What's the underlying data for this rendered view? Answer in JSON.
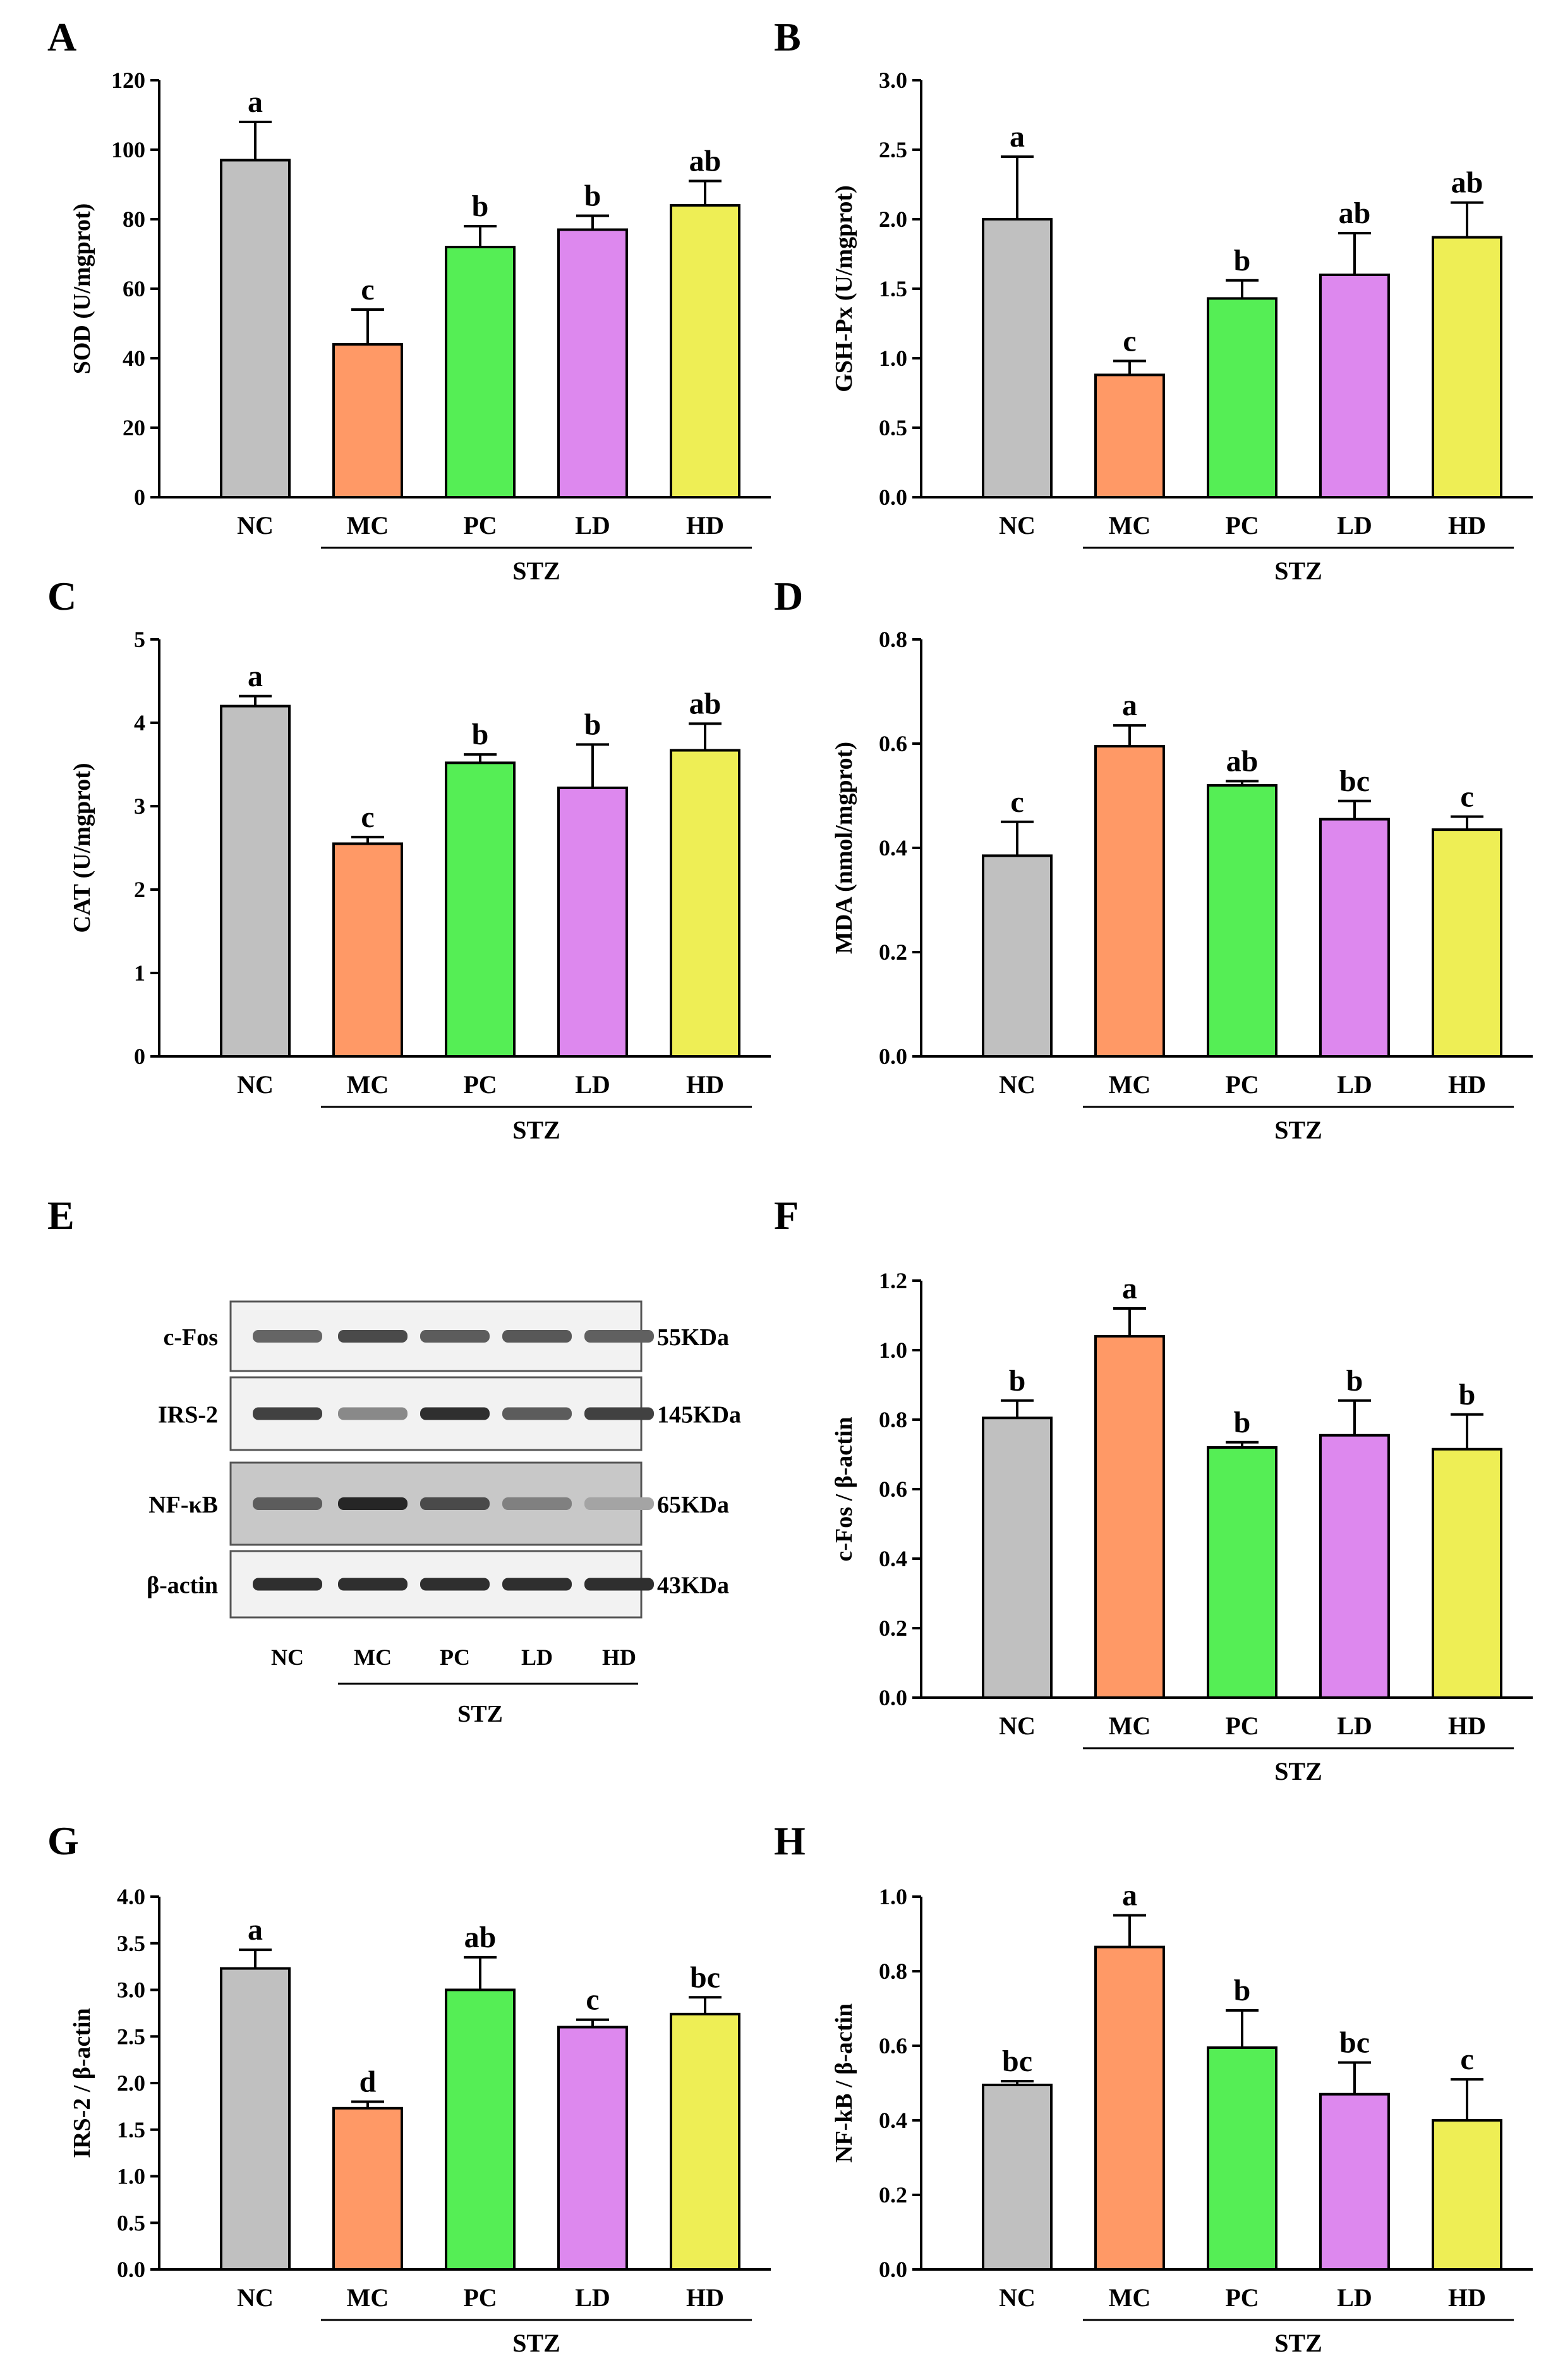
{
  "colors": {
    "NC": "#c0c0c0",
    "MC": "#ff9966",
    "PC": "#55ee55",
    "LD": "#dd88ee",
    "HD": "#eeee55",
    "axis": "#000000"
  },
  "chart_data": [
    {
      "panel": "A",
      "type": "bar",
      "ylabel": "SOD (U/mgprot)",
      "categories": [
        "NC",
        "MC",
        "PC",
        "LD",
        "HD"
      ],
      "values": [
        97,
        44,
        72,
        77,
        84
      ],
      "errors": [
        11,
        10,
        6,
        4,
        7
      ],
      "letters": [
        "a",
        "c",
        "b",
        "b",
        "ab"
      ],
      "ylim": [
        0,
        120
      ],
      "yticks": [
        "0",
        "20",
        "40",
        "60",
        "80",
        "100",
        "120"
      ],
      "group_label": "STZ"
    },
    {
      "panel": "B",
      "type": "bar",
      "ylabel": "GSH-Px (U/mgprot)",
      "categories": [
        "NC",
        "MC",
        "PC",
        "LD",
        "HD"
      ],
      "values": [
        2.0,
        0.88,
        1.43,
        1.6,
        1.87
      ],
      "errors": [
        0.45,
        0.1,
        0.13,
        0.3,
        0.25
      ],
      "letters": [
        "a",
        "c",
        "b",
        "ab",
        "ab"
      ],
      "ylim": [
        0,
        3
      ],
      "yticks": [
        "0.0",
        "0.5",
        "1.0",
        "1.5",
        "2.0",
        "2.5",
        "3.0"
      ],
      "group_label": "STZ"
    },
    {
      "panel": "C",
      "type": "bar",
      "ylabel": "CAT (U/mgprot)",
      "categories": [
        "NC",
        "MC",
        "PC",
        "LD",
        "HD"
      ],
      "values": [
        4.2,
        2.55,
        3.52,
        3.22,
        3.67
      ],
      "errors": [
        0.12,
        0.08,
        0.1,
        0.52,
        0.32
      ],
      "letters": [
        "a",
        "c",
        "b",
        "b",
        "ab"
      ],
      "ylim": [
        0,
        5
      ],
      "yticks": [
        "0",
        "1",
        "2",
        "3",
        "4",
        "5"
      ],
      "group_label": "STZ"
    },
    {
      "panel": "D",
      "type": "bar",
      "ylabel": "MDA (nmol/mgprot)",
      "categories": [
        "NC",
        "MC",
        "PC",
        "LD",
        "HD"
      ],
      "values": [
        0.385,
        0.595,
        0.52,
        0.455,
        0.435
      ],
      "errors": [
        0.065,
        0.04,
        0.008,
        0.035,
        0.025
      ],
      "letters": [
        "c",
        "a",
        "ab",
        "bc",
        "c"
      ],
      "ylim": [
        0,
        0.8
      ],
      "yticks": [
        "0.0",
        "0.2",
        "0.4",
        "0.6",
        "0.8"
      ],
      "group_label": "STZ"
    },
    {
      "panel": "F",
      "type": "bar",
      "ylabel": "c-Fos / β-actin",
      "categories": [
        "NC",
        "MC",
        "PC",
        "LD",
        "HD"
      ],
      "values": [
        0.805,
        1.04,
        0.72,
        0.755,
        0.715
      ],
      "errors": [
        0.05,
        0.08,
        0.015,
        0.1,
        0.1
      ],
      "letters": [
        "b",
        "a",
        "b",
        "b",
        "b"
      ],
      "ylim": [
        0,
        1.2
      ],
      "yticks": [
        "0.0",
        "0.2",
        "0.4",
        "0.6",
        "0.8",
        "1.0",
        "1.2"
      ],
      "group_label": "STZ"
    },
    {
      "panel": "G",
      "type": "bar",
      "ylabel": "IRS-2 / β-actin",
      "categories": [
        "NC",
        "MC",
        "PC",
        "LD",
        "HD"
      ],
      "values": [
        3.23,
        1.73,
        3.0,
        2.6,
        2.74
      ],
      "errors": [
        0.2,
        0.07,
        0.35,
        0.08,
        0.18
      ],
      "letters": [
        "a",
        "d",
        "ab",
        "c",
        "bc"
      ],
      "ylim": [
        0,
        4
      ],
      "yticks": [
        "0.0",
        "0.5",
        "1.0",
        "1.5",
        "2.0",
        "2.5",
        "3.0",
        "3.5",
        "4.0"
      ],
      "group_label": "STZ"
    },
    {
      "panel": "H",
      "type": "bar",
      "ylabel": "NF-kB / β-actin",
      "categories": [
        "NC",
        "MC",
        "PC",
        "LD",
        "HD"
      ],
      "values": [
        0.495,
        0.865,
        0.595,
        0.47,
        0.4
      ],
      "errors": [
        0.01,
        0.085,
        0.1,
        0.085,
        0.11
      ],
      "letters": [
        "bc",
        "a",
        "b",
        "bc",
        "c"
      ],
      "ylim": [
        0,
        1
      ],
      "yticks": [
        "0.0",
        "0.2",
        "0.4",
        "0.6",
        "0.8",
        "1.0"
      ],
      "group_label": "STZ"
    }
  ],
  "western_blot": {
    "panel": "E",
    "bands": [
      {
        "label": "c-Fos",
        "size": "55KDa",
        "intensities": [
          0.55,
          0.7,
          0.6,
          0.62,
          0.58
        ]
      },
      {
        "label": "IRS-2",
        "size": "145KDa",
        "intensities": [
          0.75,
          0.35,
          0.85,
          0.6,
          0.75
        ]
      },
      {
        "label": "NF-κB",
        "size": "65KDa",
        "intensities": [
          0.6,
          0.9,
          0.7,
          0.4,
          0.2
        ]
      },
      {
        "label": "β-actin",
        "size": "43KDa",
        "intensities": [
          0.85,
          0.85,
          0.85,
          0.85,
          0.85
        ]
      }
    ],
    "lanes": [
      "NC",
      "MC",
      "PC",
      "LD",
      "HD"
    ],
    "group_label": "STZ"
  }
}
